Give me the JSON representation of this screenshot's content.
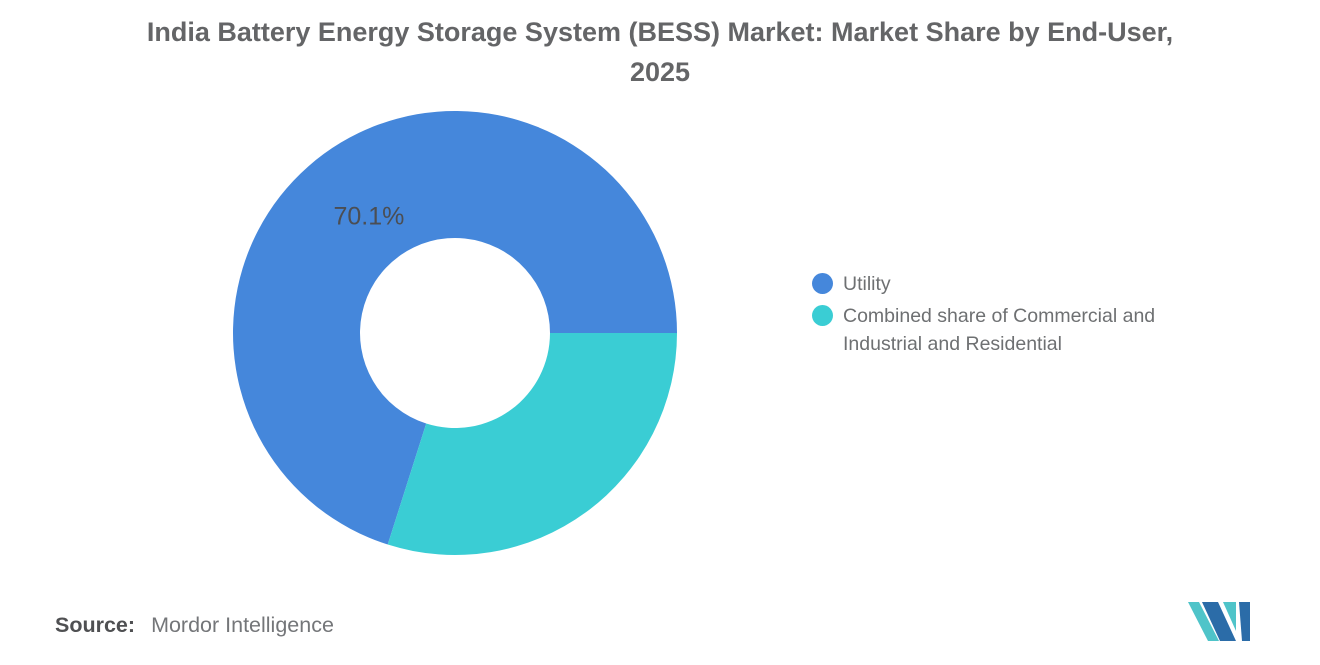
{
  "title": "India Battery Energy Storage System (BESS) Market: Market Share by End-User, 2025",
  "source": {
    "label": "Source:",
    "value": "Mordor Intelligence"
  },
  "chart_data": {
    "type": "pie",
    "subtype": "donut",
    "title": "India Battery Energy Storage System (BESS) Market: Market Share by End-User, 2025",
    "units": "percent",
    "series": [
      {
        "name": "Utility",
        "value": 70.1,
        "label": "70.1%",
        "color": "#4587DB"
      },
      {
        "name": "Combined share of Commercial and Industrial and Residential",
        "value": 29.9,
        "label": "",
        "color": "#3ACDD4"
      }
    ],
    "total": 100,
    "start_angle_deg_from_east": 0,
    "direction": "counterclockwise",
    "inner_radius_ratio": 0.43,
    "legend_position": "right",
    "data_label_color": "#4b4e53",
    "background": "#ffffff"
  },
  "logo_colors": {
    "teal": "#4FC4C9",
    "blue": "#2B6CA8"
  }
}
